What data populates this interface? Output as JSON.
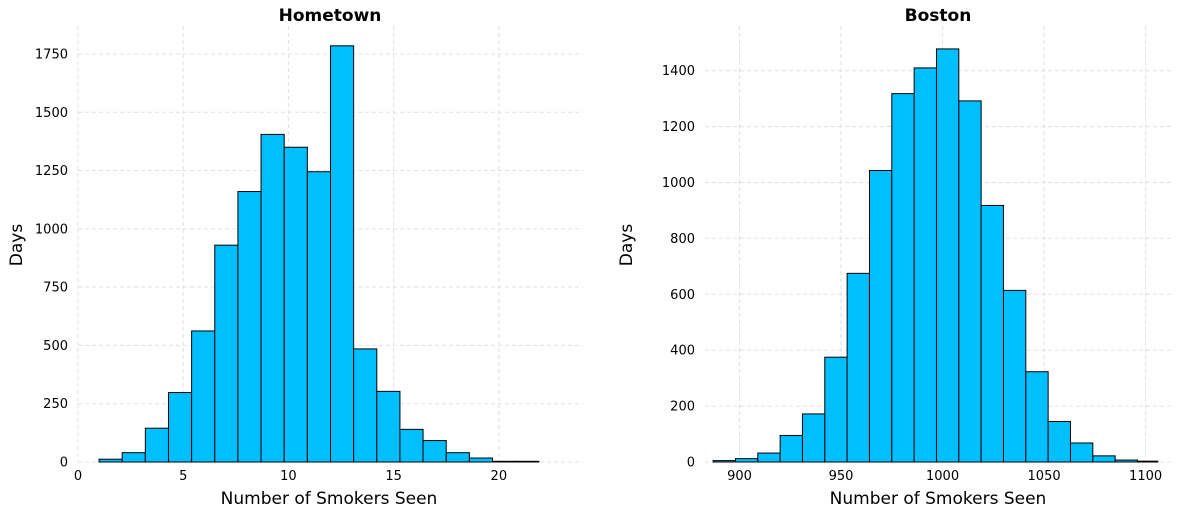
{
  "chart_data": [
    {
      "type": "bar",
      "title": "Hometown",
      "xlabel": "Number of Smokers Seen",
      "ylabel": "Days",
      "xlim": [
        0,
        24
      ],
      "ylim": [
        0,
        1870
      ],
      "xticks": [
        0,
        5,
        10,
        15,
        20
      ],
      "yticks": [
        0,
        250,
        500,
        750,
        1000,
        1250,
        1500,
        1750
      ],
      "grid": true,
      "color": "#00bfff",
      "bins": [
        {
          "x0": 1.0,
          "x1": 2.1,
          "value": 12
        },
        {
          "x0": 2.1,
          "x1": 3.2,
          "value": 40
        },
        {
          "x0": 3.2,
          "x1": 4.3,
          "value": 145
        },
        {
          "x0": 4.3,
          "x1": 5.4,
          "value": 298
        },
        {
          "x0": 5.4,
          "x1": 6.5,
          "value": 562
        },
        {
          "x0": 6.5,
          "x1": 7.6,
          "value": 930
        },
        {
          "x0": 7.6,
          "x1": 8.7,
          "value": 1160
        },
        {
          "x0": 8.7,
          "x1": 9.8,
          "value": 1405
        },
        {
          "x0": 9.8,
          "x1": 10.9,
          "value": 1350
        },
        {
          "x0": 10.9,
          "x1": 12.0,
          "value": 1245
        },
        {
          "x0": 12.0,
          "x1": 13.1,
          "value": 1785
        },
        {
          "x0": 13.1,
          "x1": 14.2,
          "value": 485
        },
        {
          "x0": 14.2,
          "x1": 15.3,
          "value": 303
        },
        {
          "x0": 15.3,
          "x1": 16.4,
          "value": 140
        },
        {
          "x0": 16.4,
          "x1": 17.5,
          "value": 92
        },
        {
          "x0": 17.5,
          "x1": 18.6,
          "value": 40
        },
        {
          "x0": 18.6,
          "x1": 19.7,
          "value": 17
        },
        {
          "x0": 19.7,
          "x1": 20.8,
          "value": 3
        },
        {
          "x0": 20.8,
          "x1": 21.9,
          "value": 3
        }
      ]
    },
    {
      "type": "bar",
      "title": "Boston",
      "xlabel": "Number of Smokers Seen",
      "ylabel": "Days",
      "xlim": [
        883,
        1113
      ],
      "ylim": [
        0,
        1560
      ],
      "xticks": [
        900,
        950,
        1000,
        1050,
        1100
      ],
      "yticks": [
        0,
        200,
        400,
        600,
        800,
        1000,
        1200,
        1400
      ],
      "grid": true,
      "color": "#00bfff",
      "bins": [
        {
          "x0": 887,
          "x1": 898,
          "value": 5
        },
        {
          "x0": 898,
          "x1": 909,
          "value": 12
        },
        {
          "x0": 909,
          "x1": 920,
          "value": 32
        },
        {
          "x0": 920,
          "x1": 931,
          "value": 95
        },
        {
          "x0": 931,
          "x1": 942,
          "value": 172
        },
        {
          "x0": 942,
          "x1": 953,
          "value": 375
        },
        {
          "x0": 953,
          "x1": 964,
          "value": 675
        },
        {
          "x0": 964,
          "x1": 975,
          "value": 1043
        },
        {
          "x0": 975,
          "x1": 986,
          "value": 1318
        },
        {
          "x0": 986,
          "x1": 997,
          "value": 1410
        },
        {
          "x0": 997,
          "x1": 1008,
          "value": 1478
        },
        {
          "x0": 1008,
          "x1": 1019,
          "value": 1292
        },
        {
          "x0": 1019,
          "x1": 1030,
          "value": 918
        },
        {
          "x0": 1030,
          "x1": 1041,
          "value": 614
        },
        {
          "x0": 1041,
          "x1": 1052,
          "value": 323
        },
        {
          "x0": 1052,
          "x1": 1063,
          "value": 145
        },
        {
          "x0": 1063,
          "x1": 1074,
          "value": 68
        },
        {
          "x0": 1074,
          "x1": 1085,
          "value": 22
        },
        {
          "x0": 1085,
          "x1": 1096,
          "value": 7
        },
        {
          "x0": 1096,
          "x1": 1106,
          "value": 3
        }
      ]
    }
  ]
}
